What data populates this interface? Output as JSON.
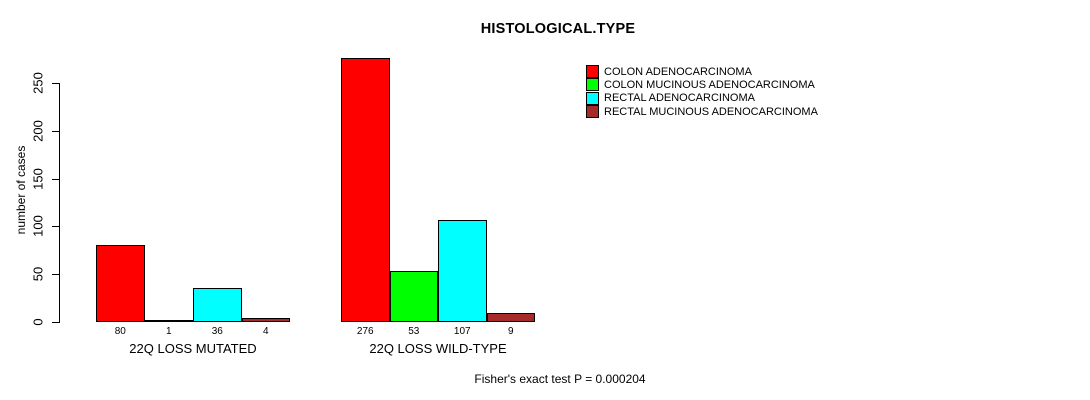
{
  "chart_data": {
    "type": "bar",
    "title": "HISTOLOGICAL.TYPE",
    "ylabel": "number of cases",
    "footnote": "Fisher's exact test P = 0.000204",
    "yticks": [
      0,
      50,
      100,
      150,
      200,
      250
    ],
    "ylim": [
      0,
      276
    ],
    "grid": false,
    "legend_position": "top-right",
    "bar_value_labels": true,
    "categories": [
      "22Q LOSS MUTATED",
      "22Q LOSS WILD-TYPE"
    ],
    "series": [
      {
        "name": "COLON ADENOCARCINOMA",
        "color": "#ff0000",
        "values": [
          80,
          276
        ]
      },
      {
        "name": "COLON MUCINOUS ADENOCARCINOMA",
        "color": "#00ff00",
        "values": [
          1,
          53
        ]
      },
      {
        "name": "RECTAL ADENOCARCINOMA",
        "color": "#00ffff",
        "values": [
          36,
          107
        ]
      },
      {
        "name": "RECTAL MUCINOUS ADENOCARCINOMA",
        "color": "#a52a2a",
        "values": [
          4,
          9
        ]
      }
    ],
    "axis_color": "#000000",
    "background_color": "#ffffff"
  }
}
